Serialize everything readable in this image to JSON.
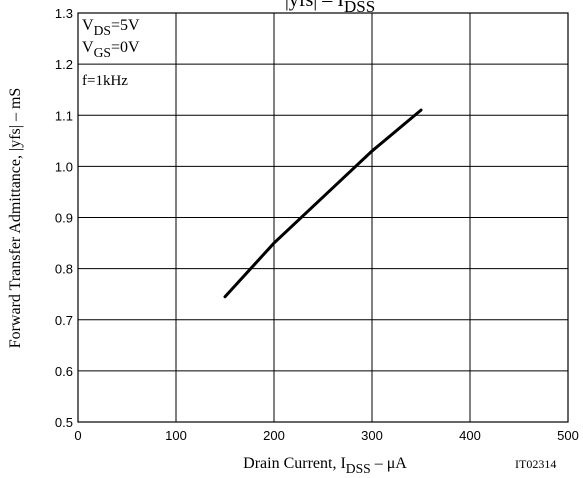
{
  "chart_data": {
    "type": "line",
    "title": [
      "|yfs|  –  I",
      "DSS"
    ],
    "x_label": [
      "Drain Current, I",
      "DSS",
      "  –  μA"
    ],
    "y_label": "Forward Transfer Admittance,  |yfs|  –  mS",
    "annotations": [
      [
        "V",
        "DS",
        "=5V"
      ],
      [
        "V",
        "GS",
        "=0V"
      ],
      [
        "f=1kHz"
      ]
    ],
    "figure_code": "IT02314",
    "x": [
      150,
      200,
      250,
      300,
      350
    ],
    "values": [
      0.745,
      0.85,
      0.94,
      1.03,
      1.11
    ],
    "color": "#000000",
    "xlim": [
      0,
      500
    ],
    "xticks": [
      0,
      100,
      200,
      300,
      400,
      500
    ],
    "ylim": [
      0.5,
      1.3
    ],
    "yticks": [
      0.5,
      0.6,
      0.7,
      0.8,
      0.9,
      {
        "value": 1,
        "label": "1.0"
      },
      1.1,
      1.2,
      1.3
    ],
    "grid": true
  }
}
